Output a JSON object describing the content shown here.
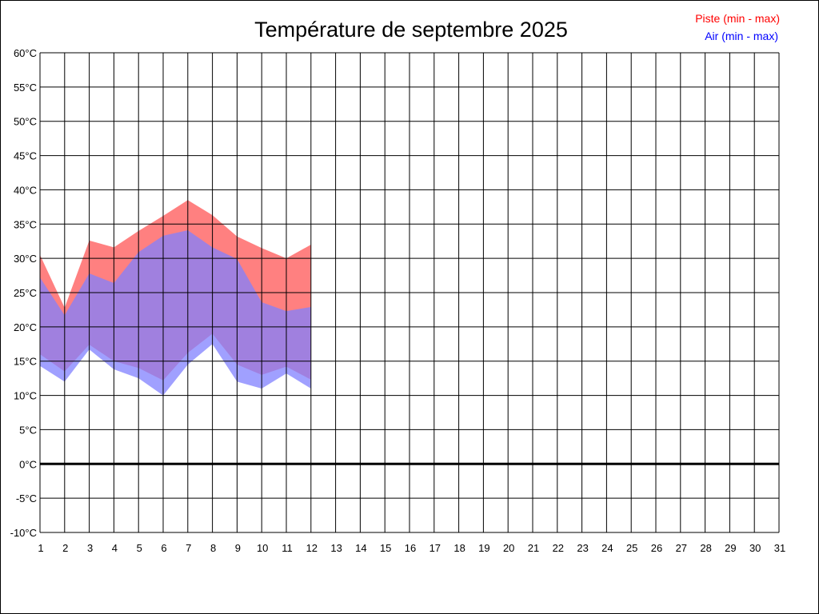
{
  "chart_data": {
    "type": "area",
    "title": "Température de septembre 2025",
    "x": [
      1,
      2,
      3,
      4,
      5,
      6,
      7,
      8,
      9,
      10,
      11,
      12,
      13,
      14,
      15,
      16,
      17,
      18,
      19,
      20,
      21,
      22,
      23,
      24,
      25,
      26,
      27,
      28,
      29,
      30,
      31
    ],
    "xlim": [
      1,
      31
    ],
    "ylim": [
      -10,
      60
    ],
    "ystep": 5,
    "y_unit": "°C",
    "grid": true,
    "zero_line": true,
    "legend_position": "top-right",
    "series": [
      {
        "name": "Piste (min - max)",
        "color": "#ff0000",
        "fill": "#ff8080",
        "x": [
          1,
          2,
          3,
          4,
          5,
          6,
          7,
          8,
          9,
          10,
          11,
          12
        ],
        "min": [
          16.0,
          13.5,
          17.4,
          15.0,
          14.0,
          12.2,
          16.2,
          19.0,
          14.5,
          13.0,
          14.2,
          12.3
        ],
        "max": [
          30.5,
          22.8,
          32.6,
          31.6,
          34.0,
          36.2,
          38.5,
          36.3,
          33.2,
          31.5,
          30.0,
          32.0
        ]
      },
      {
        "name": "Air (min - max)",
        "color": "#0000ff",
        "fill": "#8080ff",
        "x": [
          1,
          2,
          3,
          4,
          5,
          6,
          7,
          8,
          9,
          10,
          11,
          12
        ],
        "min": [
          14.3,
          12.0,
          16.7,
          13.8,
          12.5,
          10.0,
          14.5,
          17.5,
          12.0,
          11.0,
          13.2,
          11.0
        ],
        "max": [
          27.2,
          21.7,
          27.8,
          26.4,
          30.9,
          33.3,
          34.1,
          31.6,
          29.9,
          23.6,
          22.3,
          22.9
        ]
      }
    ]
  }
}
